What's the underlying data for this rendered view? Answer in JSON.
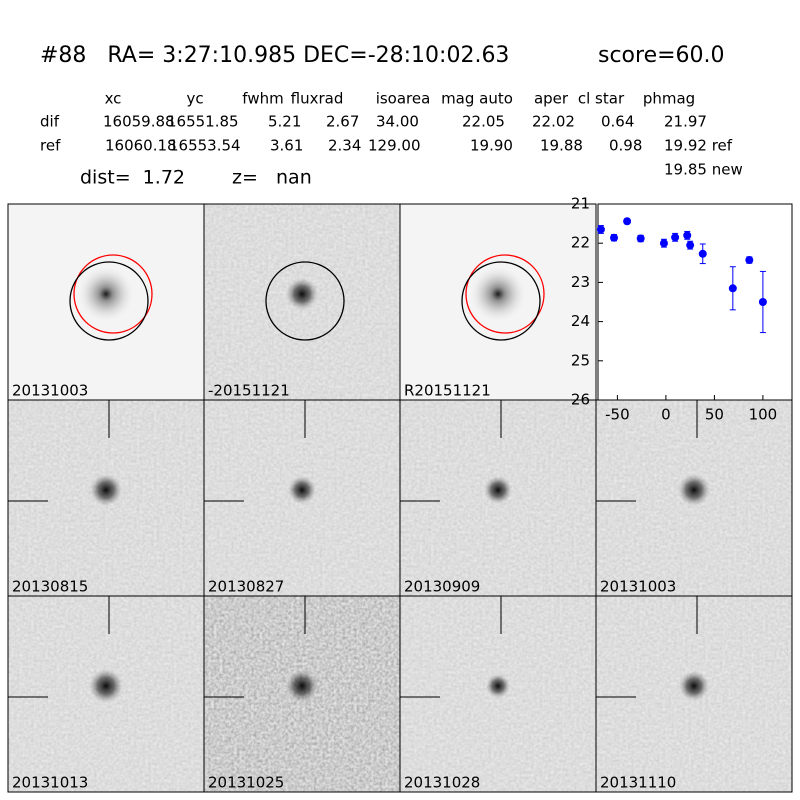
{
  "header": {
    "title": "#88   RA= 3:27:10.985 DEC=-28:10:02.63",
    "score": "score=60.0",
    "columns": [
      "xc",
      "yc",
      "fwhm",
      "fluxrad",
      "isoarea",
      "mag auto",
      "aper",
      "cl star",
      "phmag"
    ],
    "rows": [
      [
        "dif",
        "16059.88",
        "16551.85",
        "5.21",
        "2.67",
        "34.00",
        "22.05",
        "22.02",
        "0.64",
        "21.97"
      ],
      [
        "ref",
        "16060.18",
        "16553.54",
        "3.61",
        "2.34",
        "129.00",
        "19.90",
        "19.88",
        "0.98",
        "19.92 ref"
      ]
    ],
    "extra": "19.85 new",
    "dist": "dist=  1.72",
    "z": "z=   nan"
  },
  "panels": {
    "labels": [
      "20131003",
      "-20151121",
      "R20151121",
      "20130815",
      "20130827",
      "20130909",
      "20131003",
      "20131013",
      "20131025",
      "20131028",
      "20131110"
    ],
    "highlight": 6,
    "highlight_color": "#ff0000"
  },
  "chart_data": {
    "type": "scatter",
    "color": "#0000ff",
    "x": [
      -67,
      -53.5,
      -40,
      -26,
      -2,
      9.5,
      22,
      25,
      38,
      69,
      86,
      100
    ],
    "values": [
      21.65,
      21.86,
      21.44,
      21.88,
      22.0,
      21.85,
      21.8,
      22.05,
      22.27,
      23.15,
      22.43,
      23.5
    ],
    "errors": [
      0.1,
      0.08,
      0.06,
      0.08,
      0.1,
      0.1,
      0.1,
      0.1,
      0.25,
      0.55,
      0.08,
      0.78
    ],
    "xlim": [
      -70,
      130
    ],
    "ylim": [
      26,
      21
    ],
    "xticks": [
      -50,
      0,
      50,
      100
    ],
    "yticks": [
      21,
      22,
      23,
      24,
      25,
      26
    ]
  }
}
